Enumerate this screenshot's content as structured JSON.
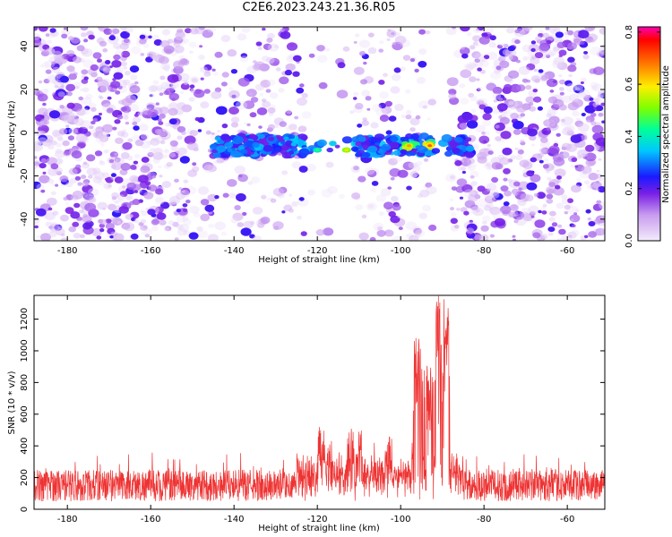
{
  "title": "C2E6.2023.243.21.36.R05",
  "chart_data": [
    {
      "type": "heatmap",
      "xlabel": "Height of straight line (km)",
      "ylabel": "Frequency (Hz)",
      "xlim": [
        -188,
        -51
      ],
      "ylim": [
        -50,
        49
      ],
      "xticks": [
        -180,
        -160,
        -140,
        -120,
        -100,
        -80,
        -60
      ],
      "yticks": [
        -40,
        -20,
        0,
        20,
        40
      ],
      "colorbar": {
        "label": "Normalized spectral amplitude",
        "range": [
          0.0,
          0.82
        ],
        "ticks": [
          "0.0",
          "0.2",
          "0.4",
          "0.6",
          "0.8"
        ]
      },
      "signal_band": {
        "x_range": [
          -145,
          -83
        ],
        "center_frequency": -6,
        "gaps_x": [
          [
            -123,
            -111
          ],
          [
            -92,
            -88
          ]
        ],
        "peak_locations": [
          {
            "x": -98,
            "y": -6,
            "amplitude": 0.65
          },
          {
            "x": -93,
            "y": -6,
            "amplitude": 0.7
          },
          {
            "x": -113,
            "y": -8,
            "amplitude": 0.6
          },
          {
            "x": -120,
            "y": -8,
            "amplitude": 0.45
          }
        ]
      }
    },
    {
      "type": "line",
      "xlabel": "Height of straight line (km)",
      "ylabel": "SNR (10 * v/v)",
      "xlim": [
        -188,
        -51
      ],
      "ylim": [
        0,
        1350
      ],
      "xticks": [
        -180,
        -160,
        -140,
        -120,
        -100,
        -80,
        -60
      ],
      "yticks": [
        0,
        200,
        400,
        600,
        800,
        1000,
        1200
      ],
      "color": "#ee3333",
      "baseline_range": [
        50,
        250
      ],
      "peaks": [
        {
          "x": -119,
          "y": 520
        },
        {
          "x": -117,
          "y": 460
        },
        {
          "x": -112,
          "y": 540
        },
        {
          "x": -110,
          "y": 500
        },
        {
          "x": -103,
          "y": 460
        },
        {
          "x": -96,
          "y": 1100
        },
        {
          "x": -93,
          "y": 900
        },
        {
          "x": -91,
          "y": 1350
        },
        {
          "x": -89,
          "y": 1350
        }
      ]
    }
  ]
}
